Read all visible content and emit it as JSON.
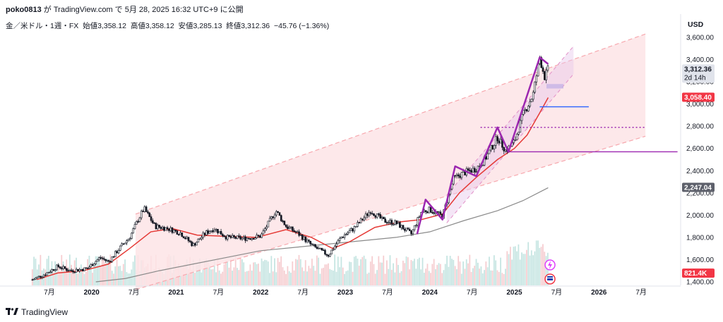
{
  "header": {
    "user": "poko0813",
    "text": " が TradingView.com で 5月 28, 2025 16:32 UTC+9 に公開"
  },
  "legend": {
    "symbol": "金／米ドル・1週・FX",
    "open_label": "始値",
    "open": "3,358.12",
    "high_label": "高値",
    "high": "3,358.12",
    "low_label": "安値",
    "low": "3,285.13",
    "close_label": "終値",
    "close": "3,312.36",
    "change": "−45.76 (−1.36%)"
  },
  "footer": {
    "brand": "TradingView"
  },
  "colors": {
    "channel_fill": "#fde4e6",
    "channel_line": "#f7a8ae",
    "ma_red": "#e53935",
    "ma_gray": "#8a8a8a",
    "purple": "#9c27b0",
    "blue": "#2962ff",
    "vol": "#f4c2c6",
    "vol_green": "#b8dedb",
    "candle": "#131722"
  },
  "chart_data": {
    "type": "candlestick",
    "title": "金／米ドル・1週・FX",
    "currency": "USD",
    "ylim": [
      1400,
      3700
    ],
    "y_ticks": [
      1400,
      1600,
      1800,
      2000,
      2200,
      2400,
      2600,
      2800,
      3000,
      3200,
      3400,
      3600
    ],
    "y_tick_labels": [
      "1,400.00",
      "1,600.00",
      "1,800.00",
      "2,000.00",
      "2,200.00",
      "2,400.00",
      "2,600.00",
      "2,800.00",
      "3,000.00",
      "3,200.00",
      "3,400.00",
      "3,600.00"
    ],
    "x_ticks": [
      {
        "t": 2019.5,
        "label": "7月"
      },
      {
        "t": 2020.0,
        "label": "2020"
      },
      {
        "t": 2020.5,
        "label": "7月"
      },
      {
        "t": 2021.0,
        "label": "2021"
      },
      {
        "t": 2021.5,
        "label": "7月"
      },
      {
        "t": 2022.0,
        "label": "2022"
      },
      {
        "t": 2022.5,
        "label": "7月"
      },
      {
        "t": 2023.0,
        "label": "2023"
      },
      {
        "t": 2023.5,
        "label": "7月"
      },
      {
        "t": 2024.0,
        "label": "2024"
      },
      {
        "t": 2024.5,
        "label": "7月"
      },
      {
        "t": 2025.0,
        "label": "2025"
      },
      {
        "t": 2025.5,
        "label": "7月"
      },
      {
        "t": 2026.0,
        "label": "2026"
      },
      {
        "t": 2026.5,
        "label": "7月"
      }
    ],
    "price_path": [
      [
        2019.3,
        1420
      ],
      [
        2019.45,
        1470
      ],
      [
        2019.6,
        1540
      ],
      [
        2019.75,
        1500
      ],
      [
        2019.95,
        1520
      ],
      [
        2020.1,
        1620
      ],
      [
        2020.2,
        1580
      ],
      [
        2020.35,
        1720
      ],
      [
        2020.45,
        1800
      ],
      [
        2020.55,
        1960
      ],
      [
        2020.62,
        2060
      ],
      [
        2020.75,
        1900
      ],
      [
        2020.9,
        1880
      ],
      [
        2021.05,
        1840
      ],
      [
        2021.2,
        1730
      ],
      [
        2021.35,
        1840
      ],
      [
        2021.45,
        1880
      ],
      [
        2021.6,
        1800
      ],
      [
        2021.8,
        1790
      ],
      [
        2022.0,
        1810
      ],
      [
        2022.18,
        2040
      ],
      [
        2022.3,
        1900
      ],
      [
        2022.45,
        1830
      ],
      [
        2022.6,
        1730
      ],
      [
        2022.8,
        1640
      ],
      [
        2022.95,
        1800
      ],
      [
        2023.1,
        1880
      ],
      [
        2023.3,
        2040
      ],
      [
        2023.45,
        1950
      ],
      [
        2023.6,
        1930
      ],
      [
        2023.78,
        1830
      ],
      [
        2023.9,
        2030
      ],
      [
        2024.0,
        2050
      ],
      [
        2024.15,
        1990
      ],
      [
        2024.28,
        2330
      ],
      [
        2024.4,
        2380
      ],
      [
        2024.55,
        2420
      ],
      [
        2024.65,
        2500
      ],
      [
        2024.8,
        2700
      ],
      [
        2024.9,
        2580
      ],
      [
        2025.0,
        2660
      ],
      [
        2025.1,
        2900
      ],
      [
        2025.22,
        3080
      ],
      [
        2025.3,
        3420
      ],
      [
        2025.36,
        3240
      ],
      [
        2025.4,
        3312
      ]
    ],
    "ma_red": [
      [
        2019.35,
        1420
      ],
      [
        2019.6,
        1480
      ],
      [
        2019.9,
        1500
      ],
      [
        2020.2,
        1560
      ],
      [
        2020.45,
        1700
      ],
      [
        2020.7,
        1850
      ],
      [
        2020.95,
        1880
      ],
      [
        2021.25,
        1820
      ],
      [
        2021.6,
        1810
      ],
      [
        2021.95,
        1800
      ],
      [
        2022.3,
        1870
      ],
      [
        2022.6,
        1800
      ],
      [
        2022.85,
        1700
      ],
      [
        2023.05,
        1760
      ],
      [
        2023.35,
        1890
      ],
      [
        2023.65,
        1940
      ],
      [
        2023.9,
        1960
      ],
      [
        2024.15,
        2010
      ],
      [
        2024.35,
        2200
      ],
      [
        2024.55,
        2340
      ],
      [
        2024.8,
        2500
      ],
      [
        2025.0,
        2600
      ],
      [
        2025.15,
        2720
      ],
      [
        2025.3,
        2920
      ],
      [
        2025.4,
        3058
      ]
    ],
    "ma_gray": [
      [
        2020.05,
        1400
      ],
      [
        2020.4,
        1430
      ],
      [
        2020.8,
        1500
      ],
      [
        2021.2,
        1560
      ],
      [
        2021.6,
        1620
      ],
      [
        2022.0,
        1680
      ],
      [
        2022.4,
        1710
      ],
      [
        2022.8,
        1740
      ],
      [
        2023.2,
        1770
      ],
      [
        2023.6,
        1800
      ],
      [
        2024.0,
        1850
      ],
      [
        2024.4,
        1950
      ],
      [
        2024.8,
        2040
      ],
      [
        2025.1,
        2130
      ],
      [
        2025.4,
        2247
      ]
    ],
    "channel_upper": [
      [
        2020.52,
        2010
      ],
      [
        2026.55,
        3630
      ]
    ],
    "channel_lower": [
      [
        2020.52,
        1330
      ],
      [
        2026.55,
        2710
      ]
    ],
    "channel_pink": {
      "start": 2020.52,
      "end": 2026.55
    },
    "inner_channel_upper": [
      [
        2024.2,
        2180
      ],
      [
        2025.7,
        3520
      ]
    ],
    "inner_channel_lower": [
      [
        2024.2,
        1930
      ],
      [
        2025.7,
        3270
      ]
    ],
    "zigzag": [
      [
        2023.85,
        1830
      ],
      [
        2023.95,
        2140
      ],
      [
        2024.15,
        1960
      ],
      [
        2024.3,
        2440
      ],
      [
        2024.55,
        2350
      ],
      [
        2024.8,
        2790
      ],
      [
        2024.93,
        2570
      ],
      [
        2025.3,
        3420
      ],
      [
        2025.4,
        3360
      ]
    ],
    "hlines": [
      {
        "price": 2975,
        "from": 2025.3,
        "to": 2025.88,
        "style": "solid",
        "color": "#2962ff"
      },
      {
        "price": 2790,
        "from": 2024.6,
        "to": 2026.55,
        "style": "dotted",
        "color": "#9c27b0"
      },
      {
        "price": 2570,
        "from": 2024.92,
        "to": 2026.93,
        "style": "solid",
        "color": "#9c27b0"
      }
    ],
    "box": {
      "from": 2025.38,
      "to": 2025.58,
      "lo": 3140,
      "hi": 3180
    },
    "volume_scale_max": 1000000,
    "price_labels": [
      {
        "text": "3,312.36",
        "sub": "2d 14h",
        "price": 3312,
        "bg": "#e0e3eb",
        "fg": "#131722"
      },
      {
        "text": "3,058.40",
        "price": 3058,
        "bg": "#f23645",
        "fg": "#ffffff"
      },
      {
        "text": "2,247.04",
        "price": 2247,
        "bg": "#5d606b",
        "fg": "#ffffff"
      },
      {
        "text": "821.4K",
        "price": 1475,
        "bg": "#f23645",
        "fg": "#ffffff"
      }
    ]
  }
}
